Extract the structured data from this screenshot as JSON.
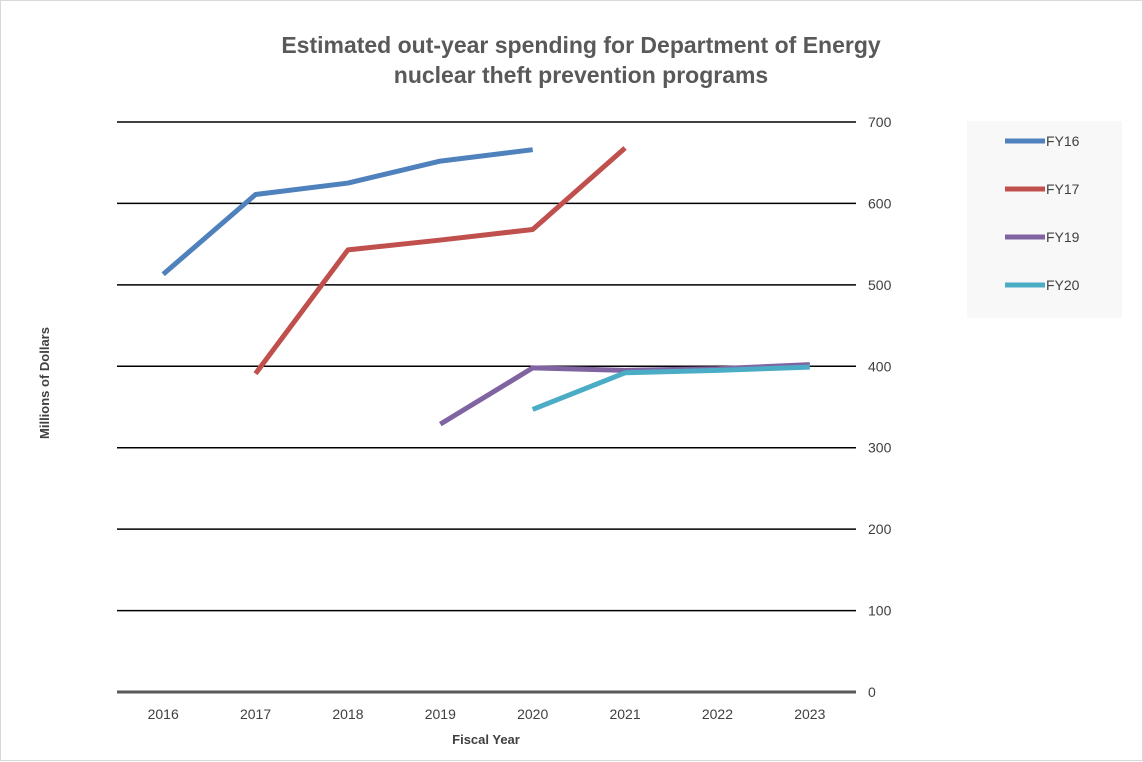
{
  "chart_data": {
    "type": "line",
    "title_lines": [
      "Estimated out-year spending for Department of Energy",
      "nuclear theft prevention programs"
    ],
    "xlabel": "Fiscal Year",
    "ylabel": "Millions of Dollars",
    "categories": [
      "2016",
      "2017",
      "2018",
      "2019",
      "2020",
      "2021",
      "2022",
      "2023"
    ],
    "y_ticks": [
      "0",
      "100",
      "200",
      "300",
      "400",
      "500",
      "600",
      "700"
    ],
    "ylim": [
      0,
      700
    ],
    "y_axis_side": "right",
    "grid": true,
    "legend_position": "right",
    "series": [
      {
        "name": "FY16",
        "color": "#4f81bd",
        "values": [
          513,
          611,
          625,
          652,
          666,
          null,
          null,
          null
        ]
      },
      {
        "name": "FY17",
        "color": "#c0504d",
        "values": [
          null,
          391,
          543,
          555,
          568,
          668,
          null,
          null
        ]
      },
      {
        "name": "FY19",
        "color": "#8064a2",
        "values": [
          null,
          null,
          null,
          329,
          398,
          395,
          397,
          402
        ]
      },
      {
        "name": "FY20",
        "color": "#4bacc6",
        "values": [
          null,
          null,
          null,
          null,
          347,
          392,
          395,
          399
        ]
      }
    ]
  }
}
